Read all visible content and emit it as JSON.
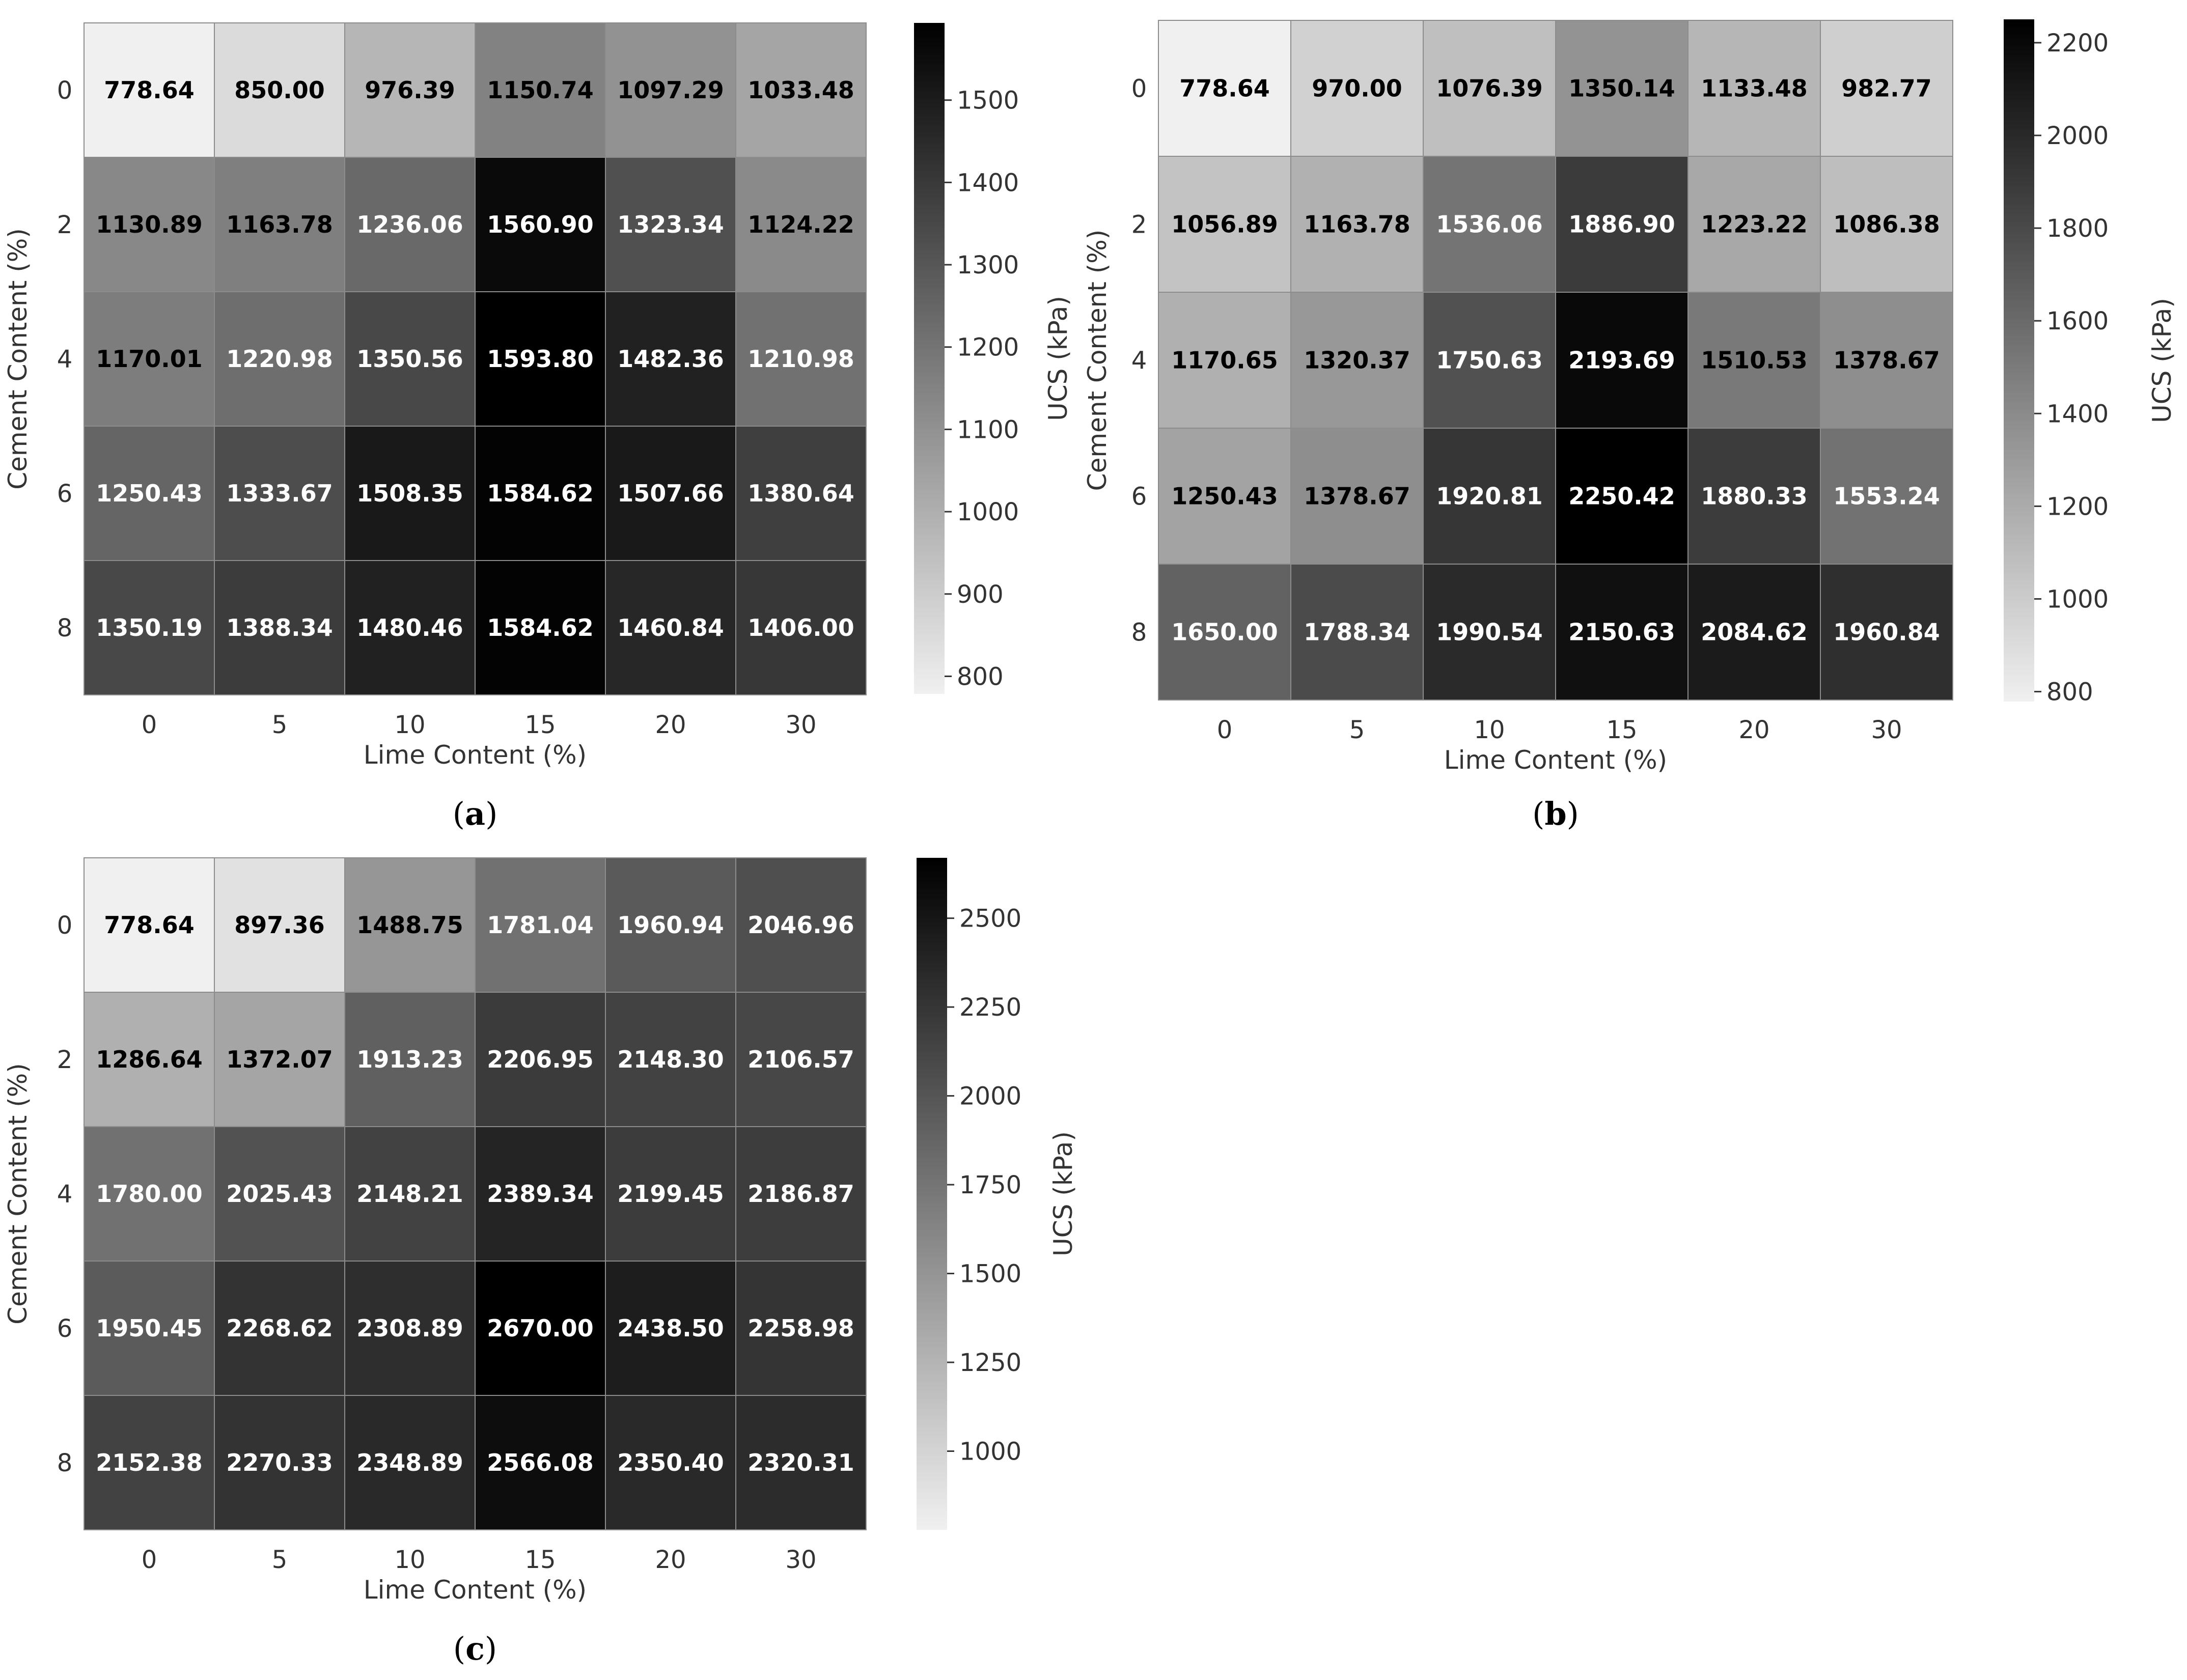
{
  "chart_data": [
    {
      "type": "heatmap",
      "panel": "(a)",
      "panel_letter": "a",
      "x_categories": [
        "0",
        "5",
        "10",
        "15",
        "20",
        "30"
      ],
      "y_categories": [
        "0",
        "2",
        "4",
        "6",
        "8"
      ],
      "xlabel": "Lime Content (%)",
      "ylabel": "Cement Content (%)",
      "colorbar_label": "UCS (kPa)",
      "colorbar_ticks": [
        800,
        900,
        1000,
        1100,
        1200,
        1300,
        1400,
        1500
      ],
      "vmin": 778.64,
      "vmax": 1593.8,
      "values": [
        [
          778.64,
          850.0,
          976.39,
          1150.74,
          1097.29,
          1033.48
        ],
        [
          1130.89,
          1163.78,
          1236.06,
          1560.9,
          1323.34,
          1124.22
        ],
        [
          1170.01,
          1220.98,
          1350.56,
          1593.8,
          1482.36,
          1210.98
        ],
        [
          1250.43,
          1333.67,
          1508.35,
          1584.62,
          1507.66,
          1380.64
        ],
        [
          1350.19,
          1388.34,
          1480.46,
          1584.62,
          1460.84,
          1406.0
        ]
      ]
    },
    {
      "type": "heatmap",
      "panel": "(b)",
      "panel_letter": "b",
      "x_categories": [
        "0",
        "5",
        "10",
        "15",
        "20",
        "30"
      ],
      "y_categories": [
        "0",
        "2",
        "4",
        "6",
        "8"
      ],
      "xlabel": "Lime Content (%)",
      "ylabel": "Cement Content (%)",
      "colorbar_label": "UCS (kPa)",
      "colorbar_ticks": [
        800,
        1000,
        1200,
        1400,
        1600,
        1800,
        2000,
        2200
      ],
      "vmin": 778.64,
      "vmax": 2250.42,
      "values": [
        [
          778.64,
          970.0,
          1076.39,
          1350.14,
          1133.48,
          982.77
        ],
        [
          1056.89,
          1163.78,
          1536.06,
          1886.9,
          1223.22,
          1086.38
        ],
        [
          1170.65,
          1320.37,
          1750.63,
          2193.69,
          1510.53,
          1378.67
        ],
        [
          1250.43,
          1378.67,
          1920.81,
          2250.42,
          1880.33,
          1553.24
        ],
        [
          1650.0,
          1788.34,
          1990.54,
          2150.63,
          2084.62,
          1960.84
        ]
      ]
    },
    {
      "type": "heatmap",
      "panel": "(c)",
      "panel_letter": "c",
      "x_categories": [
        "0",
        "5",
        "10",
        "15",
        "20",
        "30"
      ],
      "y_categories": [
        "0",
        "2",
        "4",
        "6",
        "8"
      ],
      "xlabel": "Lime Content (%)",
      "ylabel": "Cement Content (%)",
      "colorbar_label": "UCS (kPa)",
      "colorbar_ticks": [
        1000,
        1250,
        1500,
        1750,
        2000,
        2250,
        2500
      ],
      "vmin": 778.64,
      "vmax": 2670.0,
      "values": [
        [
          778.64,
          897.36,
          1488.75,
          1781.04,
          1960.94,
          2046.96
        ],
        [
          1286.64,
          1372.07,
          1913.23,
          2206.95,
          2148.3,
          2106.57
        ],
        [
          1780.0,
          2025.43,
          2148.21,
          2389.34,
          2199.45,
          2186.87
        ],
        [
          1950.45,
          2268.62,
          2308.89,
          2670.0,
          2438.5,
          2258.98
        ],
        [
          2152.38,
          2270.33,
          2348.89,
          2566.08,
          2350.4,
          2320.31
        ]
      ]
    }
  ]
}
